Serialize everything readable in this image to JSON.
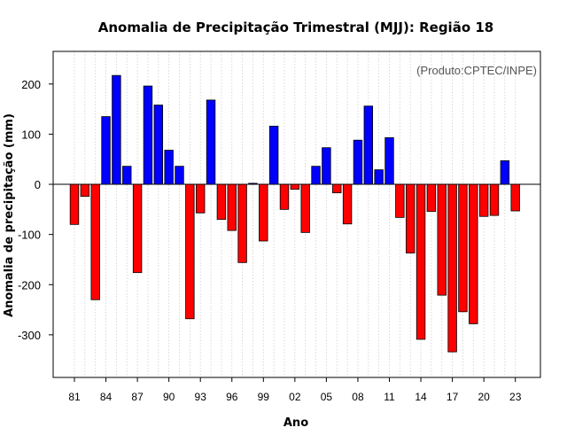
{
  "chart_data": {
    "type": "bar",
    "title": "Anomalia de Precipitação Trimestral (MJJ): Região 18",
    "xlabel": "Ano",
    "ylabel": "Anomalia de precipitação (mm)",
    "credit": "(Produto:CPTEC/INPE)",
    "ylim": [
      -385,
      265
    ],
    "yticks": [
      -300,
      -200,
      -100,
      0,
      100,
      200
    ],
    "ytick_labels": [
      "-300",
      "-200",
      "-100",
      "0",
      "100",
      "200"
    ],
    "xtick_labels": [
      "81",
      "84",
      "87",
      "90",
      "93",
      "96",
      "99",
      "02",
      "05",
      "08",
      "11",
      "14",
      "17",
      "20",
      "23"
    ],
    "xtick_every": 3,
    "grid": "vertical dotted",
    "positive_color": "#0000ff",
    "negative_color": "#ff0000",
    "categories": [
      "1981",
      "1982",
      "1983",
      "1984",
      "1985",
      "1986",
      "1987",
      "1988",
      "1989",
      "1990",
      "1991",
      "1992",
      "1993",
      "1994",
      "1995",
      "1996",
      "1997",
      "1998",
      "1999",
      "2000",
      "2001",
      "2002",
      "2003",
      "2004",
      "2005",
      "2006",
      "2007",
      "2008",
      "2009",
      "2010",
      "2011",
      "2012",
      "2013",
      "2014",
      "2015",
      "2016",
      "2017",
      "2018",
      "2019",
      "2020",
      "2021",
      "2022",
      "2023"
    ],
    "values": [
      -80,
      -24,
      -230,
      135,
      217,
      36,
      -176,
      196,
      158,
      68,
      36,
      -268,
      -57,
      168,
      -70,
      -92,
      -156,
      2,
      -113,
      116,
      -50,
      -10,
      -96,
      36,
      73,
      -17,
      -79,
      88,
      156,
      29,
      93,
      -66,
      -137,
      -309,
      -54,
      -221,
      -334,
      -254,
      -278,
      -64,
      -62,
      47,
      -53
    ]
  }
}
